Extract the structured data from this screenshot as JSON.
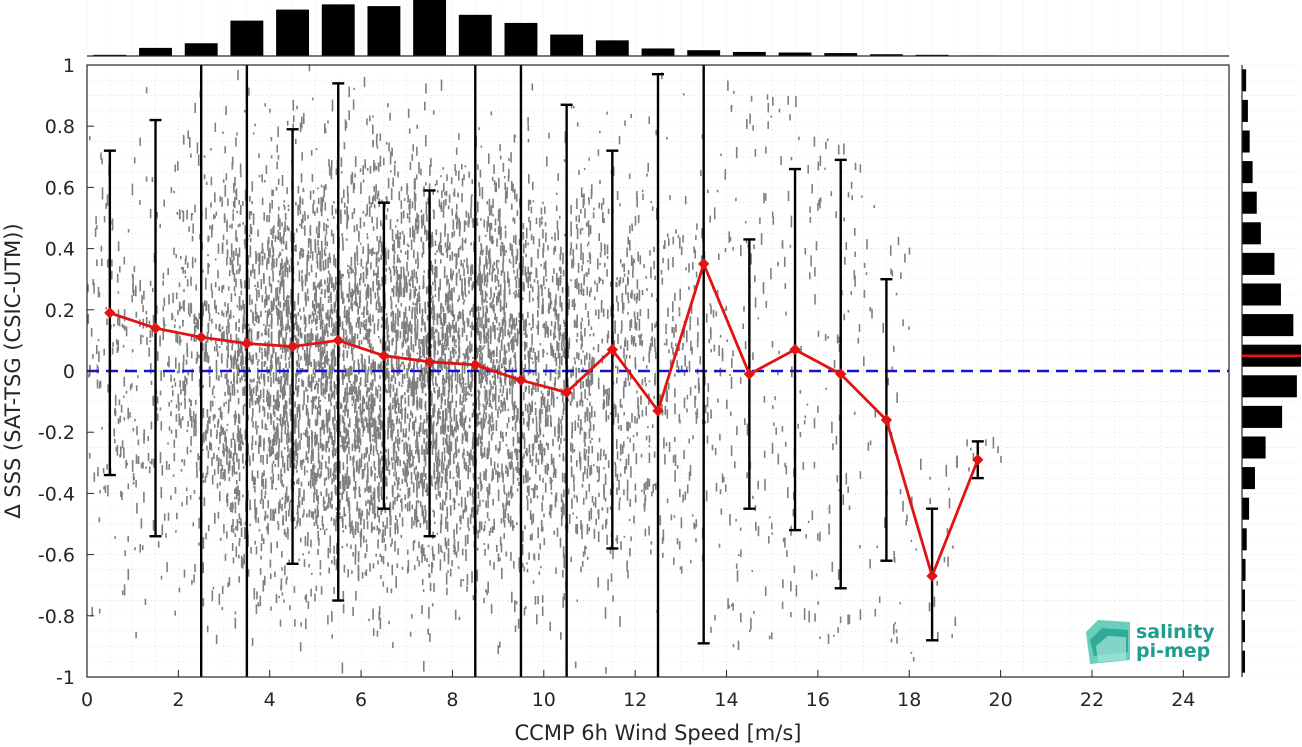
{
  "chart_data": {
    "type": "scatter",
    "xlabel": "CCMP 6h Wind Speed [m/s]",
    "ylabel": "Δ SSS (SAT-TSG (CSIC-UTM))",
    "xlim": [
      0,
      25
    ],
    "ylim": [
      -1,
      1
    ],
    "x_ticks": [
      "0",
      "2",
      "4",
      "6",
      "8",
      "10",
      "12",
      "14",
      "16",
      "18",
      "20",
      "22",
      "24"
    ],
    "y_ticks": [
      "-1",
      "-0.8",
      "-0.6",
      "-0.4",
      "-0.2",
      "0",
      "0.2",
      "0.4",
      "0.6",
      "0.8",
      "1"
    ],
    "grid": true,
    "reference_line": {
      "y": 0,
      "color": "#1414d2",
      "style": "dashed"
    },
    "colors": {
      "scatter": "#7f7f7f",
      "mean_line": "#e01414",
      "error_bar": "#000000",
      "histogram": "#000000",
      "median_marker": "#e01414"
    },
    "scatter_columns": [
      {
        "x": 0.5,
        "y_min": -0.9,
        "y_max": 1.0,
        "density": 0.5
      },
      {
        "x": 1.5,
        "y_min": -1.0,
        "y_max": 1.0,
        "density": 0.6
      },
      {
        "x": 2.5,
        "y_min": -1.0,
        "y_max": 1.0,
        "density": 1.2
      },
      {
        "x": 3.5,
        "y_min": -1.0,
        "y_max": 1.0,
        "density": 2.2
      },
      {
        "x": 4.5,
        "y_min": -1.0,
        "y_max": 1.0,
        "density": 2.8
      },
      {
        "x": 5.5,
        "y_min": -1.0,
        "y_max": 1.0,
        "density": 3.0
      },
      {
        "x": 6.5,
        "y_min": -1.0,
        "y_max": 1.0,
        "density": 3.0
      },
      {
        "x": 7.5,
        "y_min": -1.0,
        "y_max": 1.0,
        "density": 3.2
      },
      {
        "x": 8.5,
        "y_min": -1.0,
        "y_max": 1.0,
        "density": 2.8
      },
      {
        "x": 9.5,
        "y_min": -1.0,
        "y_max": 1.0,
        "density": 2.2
      },
      {
        "x": 10.5,
        "y_min": -1.0,
        "y_max": 1.0,
        "density": 1.6
      },
      {
        "x": 11.5,
        "y_min": -1.0,
        "y_max": 1.0,
        "density": 1.1
      },
      {
        "x": 12.5,
        "y_min": -1.0,
        "y_max": 1.0,
        "density": 0.7
      },
      {
        "x": 13.5,
        "y_min": -1.0,
        "y_max": 1.0,
        "density": 0.5
      },
      {
        "x": 14.5,
        "y_min": -0.9,
        "y_max": 0.95,
        "density": 0.35
      },
      {
        "x": 15.5,
        "y_min": -0.9,
        "y_max": 0.9,
        "density": 0.3
      },
      {
        "x": 16.5,
        "y_min": -0.9,
        "y_max": 0.8,
        "density": 0.25
      },
      {
        "x": 17.5,
        "y_min": -0.9,
        "y_max": 0.55,
        "density": 0.18
      },
      {
        "x": 18.5,
        "y_min": -0.95,
        "y_max": -0.3,
        "density": 0.08
      },
      {
        "x": 19.5,
        "y_min": -0.35,
        "y_max": -0.22,
        "density": 0.04
      }
    ],
    "mean_series": {
      "x": [
        0.5,
        1.5,
        2.5,
        3.5,
        4.5,
        5.5,
        6.5,
        7.5,
        8.5,
        9.5,
        10.5,
        11.5,
        12.5,
        13.5,
        14.5,
        15.5,
        16.5,
        17.5,
        18.5,
        19.5
      ],
      "y": [
        0.19,
        0.14,
        0.11,
        0.09,
        0.08,
        0.1,
        0.05,
        0.03,
        0.02,
        -0.03,
        -0.07,
        0.07,
        -0.13,
        0.35,
        -0.01,
        0.07,
        -0.01,
        -0.16,
        -0.67,
        -0.29
      ],
      "err_low": [
        -0.34,
        -0.54,
        -1.0,
        -1.0,
        -0.63,
        -0.75,
        -0.45,
        -0.54,
        -1.0,
        -1.0,
        -1.0,
        -0.58,
        -1.0,
        -0.89,
        -0.45,
        -0.52,
        -0.71,
        -0.62,
        -0.88,
        -0.35
      ],
      "err_high": [
        0.72,
        0.82,
        1.0,
        1.0,
        0.79,
        0.94,
        0.55,
        0.59,
        1.0,
        1.0,
        0.87,
        0.72,
        0.97,
        1.0,
        0.43,
        0.66,
        0.69,
        0.3,
        -0.45,
        -0.23
      ]
    },
    "top_histogram": {
      "x": [
        0.5,
        1.5,
        2.5,
        3.5,
        4.5,
        5.5,
        6.5,
        7.5,
        8.5,
        9.5,
        10.5,
        11.5,
        12.5,
        13.5,
        14.5,
        15.5,
        16.5,
        17.5,
        18.5,
        19.5,
        20.5,
        21.5,
        22.5,
        23.5,
        24.5
      ],
      "count": [
        0.02,
        0.14,
        0.22,
        0.61,
        0.8,
        0.89,
        0.86,
        1.0,
        0.71,
        0.57,
        0.37,
        0.27,
        0.13,
        0.1,
        0.07,
        0.06,
        0.05,
        0.03,
        0.02,
        0.01,
        0.0,
        0.0,
        0.0,
        0.0,
        0.0
      ]
    },
    "right_histogram": {
      "y": [
        -0.95,
        -0.85,
        -0.75,
        -0.65,
        -0.55,
        -0.45,
        -0.35,
        -0.25,
        -0.15,
        -0.05,
        0.05,
        0.15,
        0.25,
        0.35,
        0.45,
        0.55,
        0.65,
        0.75,
        0.85,
        0.95
      ],
      "count": [
        0.04,
        0.04,
        0.05,
        0.06,
        0.08,
        0.12,
        0.22,
        0.4,
        0.68,
        0.93,
        1.0,
        0.87,
        0.66,
        0.55,
        0.32,
        0.25,
        0.18,
        0.13,
        0.1,
        0.07
      ],
      "median": 0.05
    }
  },
  "logo": {
    "line1": "salinity",
    "line2": "pi-mep"
  }
}
